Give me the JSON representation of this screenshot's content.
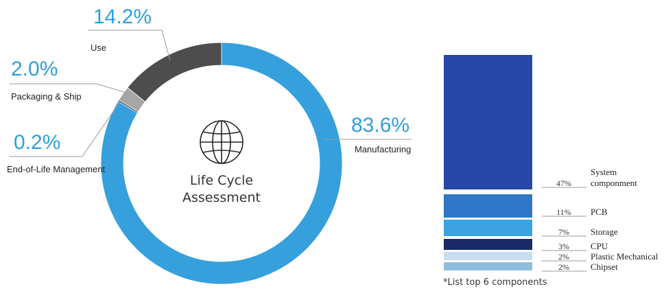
{
  "chart_data": [
    {
      "type": "pie",
      "center_title": [
        "Life Cycle",
        "Assessment"
      ],
      "slices": [
        {
          "name": "Manufacturing",
          "value": 83.6,
          "value_label": "83.6%",
          "color": "#36a0dc"
        },
        {
          "name": "End-of-Life Management",
          "value": 0.2,
          "value_label": "0.2%",
          "color": "#2a2a2a"
        },
        {
          "name": "Packaging & Ship",
          "value": 2.0,
          "value_label": "2.0%",
          "color": "#a6a6a6"
        },
        {
          "name": "Use",
          "value": 14.2,
          "value_label": "14.2%",
          "color": "#4d4d4d"
        }
      ]
    },
    {
      "type": "bar",
      "stacked": true,
      "segments": [
        {
          "name": "System\ncomponment",
          "value": 47,
          "value_label": "47%",
          "color": "#2548a8"
        },
        {
          "name": "PCB",
          "value": 11,
          "value_label": "11%",
          "color": "#2f77c7"
        },
        {
          "name": "Storage",
          "value": 7,
          "value_label": "7%",
          "color": "#3aa3e0"
        },
        {
          "name": "CPU",
          "value": 3,
          "value_label": "3%",
          "color": "#1a2a66"
        },
        {
          "name": "Plastic Mechanical",
          "value": 2,
          "value_label": "2%",
          "color": "#c9def0"
        },
        {
          "name": "Chipset",
          "value": 2,
          "value_label": "2%",
          "color": "#8fbedb"
        }
      ],
      "footnote": "*List top 6 components"
    }
  ]
}
